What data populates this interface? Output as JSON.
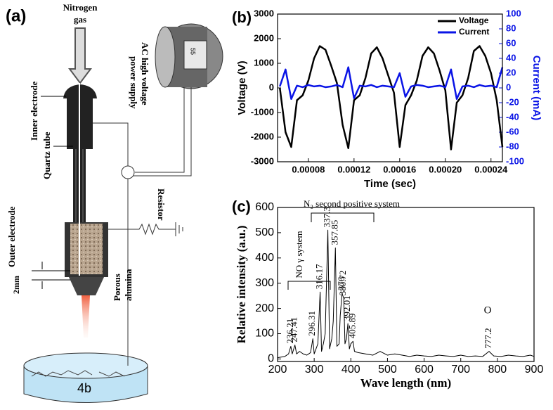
{
  "diagram": {
    "panel": "(a)",
    "nitrogen_gas": [
      "Nitrogen",
      "gas"
    ],
    "inner_electrode": "Inner electrode",
    "quartz_tube": "Quartz tube",
    "power_supply": [
      "AC high voltage",
      "power supply"
    ],
    "dial": "55",
    "resistor": "Resistor",
    "outer_electrode": "Outer electrode",
    "gap": "2mm",
    "porous_alumina": [
      "Porous",
      "alumina"
    ],
    "sample": "4b"
  },
  "chart_data": [
    {
      "type": "line",
      "label": "(b)",
      "xlabel": "Time (sec)",
      "ylabel": "Voltage (V)",
      "y2label": "Current (mA)",
      "xlim": [
        5.3e-05,
        0.00025
      ],
      "xticks": [
        {
          "value": 8e-05,
          "label": "0.00008"
        },
        {
          "value": 0.00012,
          "label": "0.00012"
        },
        {
          "value": 0.00016,
          "label": "0.00016"
        },
        {
          "value": 0.0002,
          "label": "0.00020"
        },
        {
          "value": 0.00024,
          "label": "0.00024"
        }
      ],
      "ylim": [
        -3000,
        3000
      ],
      "yticks": [
        -3000,
        -2000,
        -1000,
        0,
        1000,
        2000,
        3000
      ],
      "y2lim": [
        -100,
        100
      ],
      "y2ticks": [
        -100,
        -80,
        -60,
        -40,
        -20,
        0,
        20,
        40,
        60,
        80,
        100
      ],
      "x": [
        5.5e-05,
        6e-05,
        6.5e-05,
        7e-05,
        7.5e-05,
        8e-05,
        8.5e-05,
        9e-05,
        9.5e-05,
        0.0001,
        0.000105,
        0.00011,
        0.000115,
        0.00012,
        0.000125,
        0.00013,
        0.000135,
        0.00014,
        0.000145,
        0.00015,
        0.000155,
        0.00016,
        0.000165,
        0.00017,
        0.000175,
        0.00018,
        0.000185,
        0.00019,
        0.000195,
        0.0002,
        0.000205,
        0.00021,
        0.000215,
        0.00022,
        0.000225,
        0.00023,
        0.000235,
        0.00024,
        0.000245,
        0.00025
      ],
      "series": [
        {
          "name": "Voltage",
          "color": "#000000",
          "values": [
            0,
            -1800,
            -2400,
            -500,
            -300,
            300,
            1200,
            1700,
            1550,
            900,
            200,
            -1500,
            -2450,
            -500,
            -300,
            400,
            1400,
            1650,
            1200,
            500,
            -200,
            -2400,
            -700,
            -300,
            300,
            1300,
            1650,
            1400,
            700,
            -100,
            -2500,
            -600,
            -300,
            400,
            1500,
            1700,
            1300,
            600,
            -500,
            -2400
          ]
        },
        {
          "name": "Current",
          "color": "#0a14e6",
          "axis": "y2",
          "values": [
            2,
            25,
            -15,
            3,
            1,
            4,
            2,
            3,
            1,
            2,
            4,
            1,
            28,
            -14,
            3,
            2,
            4,
            1,
            3,
            2,
            1,
            20,
            -12,
            2,
            4,
            3,
            1,
            2,
            3,
            1,
            25,
            -15,
            2,
            3,
            1,
            4,
            2,
            3,
            1,
            28
          ]
        }
      ],
      "legend": "upper right"
    },
    {
      "type": "line",
      "label": "(c)",
      "xlabel": "Wave length (nm)",
      "ylabel": "Relative intensity (a.u.)",
      "xlim": [
        200,
        900
      ],
      "xticks": [
        200,
        300,
        400,
        500,
        600,
        700,
        800,
        900
      ],
      "ylim": [
        -10,
        600
      ],
      "yticks": [
        0,
        100,
        200,
        300,
        400,
        500,
        600
      ],
      "x": [
        200,
        220,
        230,
        236.21,
        240,
        247.41,
        252,
        260,
        270,
        280,
        290,
        296.31,
        300,
        305,
        310,
        316.17,
        320,
        325,
        330,
        337.3,
        342,
        348,
        352,
        357.85,
        362,
        368,
        371,
        376,
        380.72,
        384,
        388,
        392.01,
        396,
        400,
        405.89,
        410,
        420,
        440,
        460,
        480,
        500,
        520,
        540,
        560,
        580,
        600,
        620,
        640,
        660,
        680,
        700,
        720,
        740,
        760,
        777.2,
        790,
        810,
        830,
        850,
        870,
        890,
        900
      ],
      "values": [
        5,
        10,
        20,
        50,
        20,
        55,
        20,
        30,
        20,
        15,
        25,
        80,
        20,
        40,
        60,
        265,
        30,
        60,
        100,
        510,
        40,
        80,
        150,
        440,
        50,
        60,
        170,
        260,
        240,
        60,
        80,
        140,
        40,
        60,
        70,
        30,
        25,
        20,
        15,
        30,
        15,
        20,
        15,
        10,
        15,
        12,
        10,
        15,
        12,
        10,
        15,
        10,
        12,
        10,
        30,
        12,
        10,
        15,
        12,
        10,
        15,
        10
      ],
      "color": "#000000",
      "peaks": [
        236.21,
        247.41,
        296.31,
        316.17,
        337.3,
        357.85,
        376,
        380.72,
        392.01,
        405.89,
        777.2
      ],
      "annotations": [
        "NO γ system",
        "N₂ second positive system",
        "O"
      ]
    }
  ]
}
